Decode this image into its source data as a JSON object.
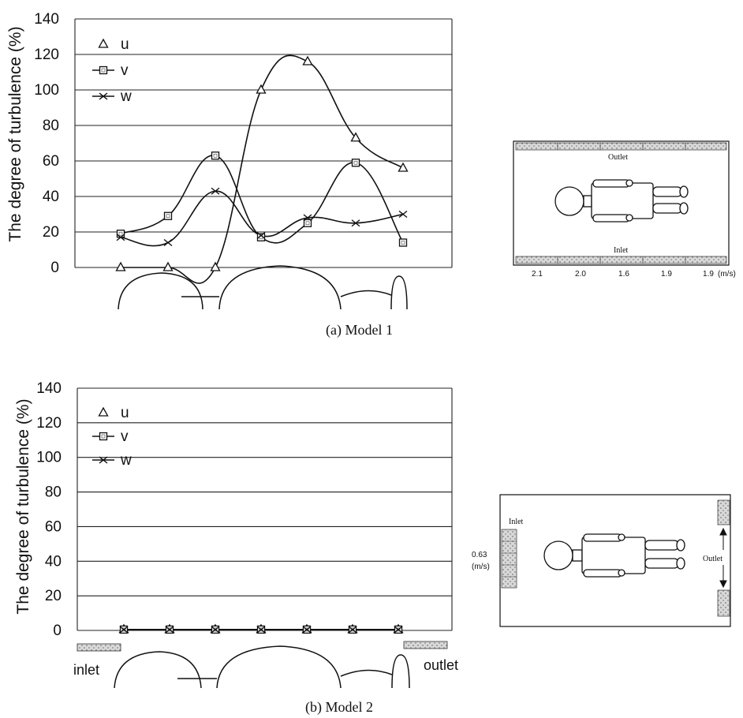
{
  "chart_data": [
    {
      "type": "line",
      "ylabel": "The degree of turbulence (%)",
      "ylim": [
        0,
        140
      ],
      "yticks": [
        "0",
        "20",
        "40",
        "60",
        "80",
        "100",
        "120",
        "140"
      ],
      "grid": true,
      "legend_position": "top-left",
      "x": [
        1,
        2,
        3,
        4,
        5,
        6,
        7
      ],
      "series": [
        {
          "name": "u",
          "marker": "triangle",
          "values": [
            0,
            0,
            0,
            100,
            116,
            73,
            56
          ]
        },
        {
          "name": "v",
          "marker": "square",
          "values": [
            19,
            29,
            63,
            17,
            25,
            59,
            14
          ]
        },
        {
          "name": "w",
          "marker": "cross",
          "values": [
            17,
            14,
            43,
            18,
            28,
            25,
            30
          ]
        }
      ],
      "caption": "(a)  Model 1"
    },
    {
      "type": "line",
      "ylabel": "The degree of turbulence (%)",
      "ylim": [
        0,
        140
      ],
      "yticks": [
        "0",
        "20",
        "40",
        "60",
        "80",
        "100",
        "120",
        "140"
      ],
      "grid": true,
      "legend_position": "top-left",
      "x": [
        1,
        2,
        3,
        4,
        5,
        6,
        7
      ],
      "series": [
        {
          "name": "u",
          "marker": "triangle",
          "values": [
            0.5,
            0.5,
            0.5,
            0.5,
            0.5,
            0.5,
            0.5
          ]
        },
        {
          "name": "v",
          "marker": "square",
          "values": [
            0.5,
            0.5,
            0.5,
            0.5,
            0.5,
            0.5,
            0.5
          ]
        },
        {
          "name": "w",
          "marker": "cross",
          "values": [
            0.5,
            0.5,
            0.5,
            0.5,
            0.5,
            0.5,
            0.5
          ]
        }
      ],
      "caption": "(b)  Model 2",
      "inlet_label": "inlet",
      "outlet_label": "outlet"
    }
  ],
  "diagram1": {
    "outlet_label": "Outlet",
    "inlet_label": "Inlet",
    "velocities": [
      "2.1",
      "2.0",
      "1.6",
      "1.9",
      "1.9"
    ],
    "unit": "(m/s)"
  },
  "diagram2": {
    "inlet_label": "Inlet",
    "outlet_label": "Outlet",
    "velocity": "0.63",
    "unit": "(m/s)"
  }
}
